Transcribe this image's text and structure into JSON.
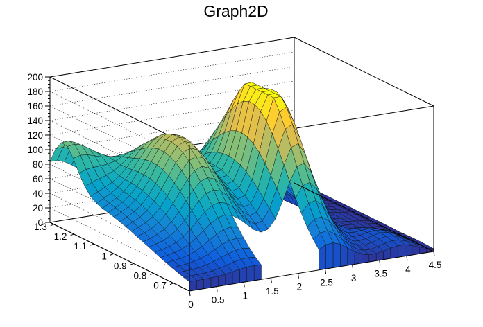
{
  "chart_data": {
    "type": "surface3d",
    "title": "Graph2D",
    "x_ticks": [
      "0",
      "0.5",
      "1",
      "1.5",
      "2",
      "2.5",
      "3",
      "3.5",
      "4",
      "4.5"
    ],
    "y_ticks": [
      "0.7",
      "0.8",
      "0.9",
      "1",
      "1.1",
      "1.2",
      "1.3"
    ],
    "z_ticks": [
      "0",
      "20",
      "40",
      "60",
      "80",
      "100",
      "120",
      "140",
      "160",
      "180",
      "200"
    ],
    "xlim": [
      0,
      4.5
    ],
    "ylim": [
      0.62,
      1.32
    ],
    "zlim": [
      0,
      200
    ],
    "palette": [
      "#352a87",
      "#0f5cdd",
      "#1481d6",
      "#06a4ca",
      "#2eb7a4",
      "#87bf77",
      "#d1bb59",
      "#fec832",
      "#f9fb0e"
    ],
    "grid": true,
    "peaks": [
      {
        "x": 2.6,
        "y": 0.93,
        "z": 195
      },
      {
        "x": 1.2,
        "y": 0.95,
        "z": 165
      },
      {
        "x": 0.0,
        "y": 1.26,
        "z": 80
      }
    ]
  }
}
